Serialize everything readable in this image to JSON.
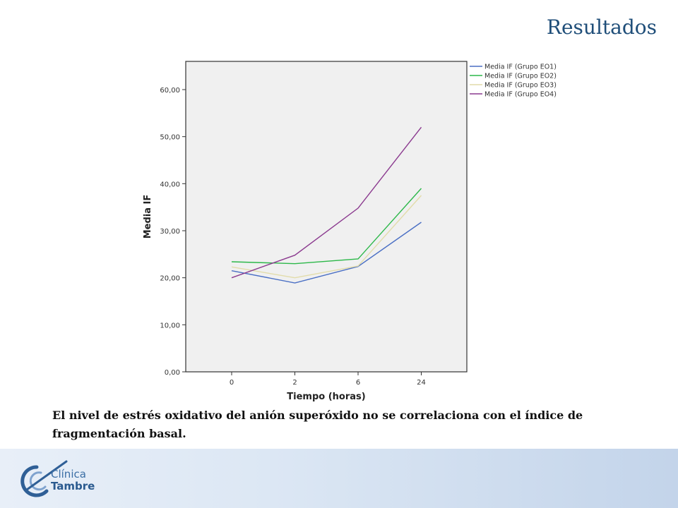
{
  "slide": {
    "title": "Resultados",
    "caption": "El nivel de estrés oxidativo del anión superóxido no se correlaciona con el índice de fragmentación  basal."
  },
  "logo": {
    "line1": "Clínica",
    "line2": "Tambre"
  },
  "chart_data": {
    "type": "line",
    "xlabel": "Tiempo (horas)",
    "ylabel": "Media IF",
    "categories": [
      "0",
      "2",
      "6",
      "24"
    ],
    "ylim": [
      0,
      66
    ],
    "yticks": [
      "0,00",
      "10,00",
      "20,00",
      "30,00",
      "40,00",
      "50,00",
      "60,00"
    ],
    "legend_position": "top-right-outside",
    "grid": false,
    "series": [
      {
        "name": "Media IF (Grupo EO1)",
        "color": "#4a6fc4",
        "values": [
          21.5,
          18.9,
          22.4,
          31.8
        ]
      },
      {
        "name": "Media IF (Grupo EO2)",
        "color": "#2db84a",
        "values": [
          23.4,
          23.0,
          24.0,
          39.0
        ]
      },
      {
        "name": "Media IF (Grupo EO3)",
        "color": "#e2dcaa",
        "values": [
          22.3,
          20.0,
          22.5,
          37.5
        ]
      },
      {
        "name": "Media IF (Grupo EO4)",
        "color": "#8b3a8f",
        "values": [
          20.0,
          24.8,
          34.8,
          52.0
        ]
      }
    ]
  }
}
